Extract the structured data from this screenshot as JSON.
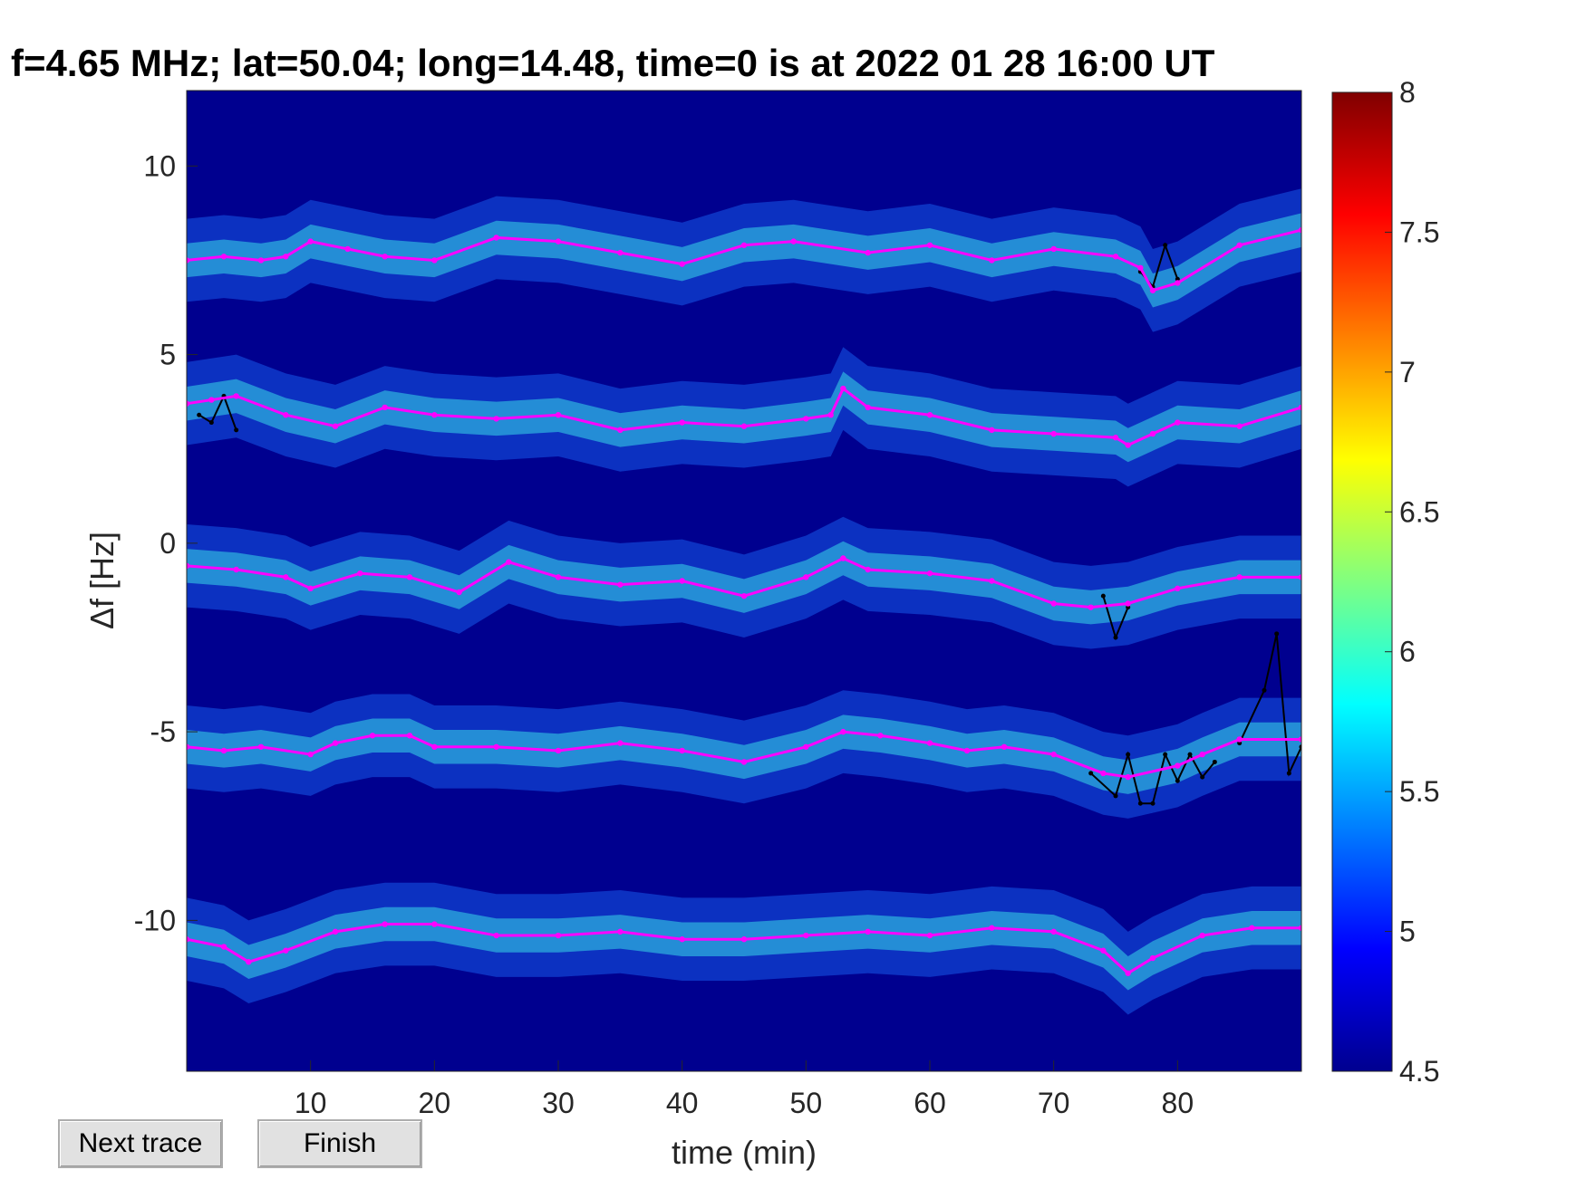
{
  "chart_data": {
    "type": "heatmap",
    "title": "f=4.65 MHz;  lat=50.04; long=14.48, time=0 is at 2022 01 28 16:00 UT",
    "xlabel": "time (min)",
    "ylabel": "Δf [Hz]",
    "xlim": [
      0,
      90
    ],
    "ylim": [
      -14,
      12
    ],
    "xticks": [
      "10",
      "20",
      "30",
      "40",
      "50",
      "60",
      "70",
      "80"
    ],
    "yticks": [
      "10",
      "5",
      "0",
      "-5",
      "-10"
    ],
    "colorbar": {
      "min": 4.5,
      "max": 8,
      "colormap": "jet",
      "ticks": [
        "8",
        "7.5",
        "7",
        "6.5",
        "6",
        "5.5",
        "5",
        "4.5"
      ]
    },
    "background_color": "#00008f",
    "trace_colors": {
      "tracked": "#ff00ff",
      "raw": "#000000"
    },
    "series": [
      {
        "x": [
          0,
          3,
          6,
          8,
          10,
          13,
          16,
          20,
          25,
          30,
          35,
          40,
          45,
          49,
          55,
          60,
          65,
          70,
          75,
          77,
          78,
          80,
          85,
          90
        ],
        "y": [
          7.5,
          7.6,
          7.5,
          7.6,
          8.0,
          7.8,
          7.6,
          7.5,
          8.1,
          8.0,
          7.7,
          7.4,
          7.9,
          8.0,
          7.7,
          7.9,
          7.5,
          7.8,
          7.6,
          7.3,
          6.7,
          6.9,
          7.9,
          8.3
        ]
      },
      {
        "x": [
          0,
          2,
          4,
          8,
          12,
          16,
          20,
          25,
          30,
          35,
          40,
          45,
          50,
          52,
          53,
          55,
          60,
          65,
          70,
          75,
          76,
          78,
          80,
          85,
          90
        ],
        "y": [
          3.7,
          3.8,
          3.9,
          3.4,
          3.1,
          3.6,
          3.4,
          3.3,
          3.4,
          3.0,
          3.2,
          3.1,
          3.3,
          3.4,
          4.1,
          3.6,
          3.4,
          3.0,
          2.9,
          2.8,
          2.6,
          2.9,
          3.2,
          3.1,
          3.6
        ]
      },
      {
        "x": [
          0,
          4,
          8,
          10,
          14,
          18,
          22,
          26,
          30,
          35,
          40,
          45,
          50,
          53,
          55,
          60,
          65,
          70,
          73,
          76,
          80,
          85,
          90
        ],
        "y": [
          -0.6,
          -0.7,
          -0.9,
          -1.2,
          -0.8,
          -0.9,
          -1.3,
          -0.5,
          -0.9,
          -1.1,
          -1.0,
          -1.4,
          -0.9,
          -0.4,
          -0.7,
          -0.8,
          -1.0,
          -1.6,
          -1.7,
          -1.6,
          -1.2,
          -0.9,
          -0.9
        ]
      },
      {
        "x": [
          0,
          3,
          6,
          10,
          12,
          15,
          18,
          20,
          25,
          30,
          35,
          40,
          45,
          50,
          53,
          56,
          60,
          63,
          66,
          70,
          74,
          76,
          80,
          82,
          85,
          90
        ],
        "y": [
          -5.4,
          -5.5,
          -5.4,
          -5.6,
          -5.3,
          -5.1,
          -5.1,
          -5.4,
          -5.4,
          -5.5,
          -5.3,
          -5.5,
          -5.8,
          -5.4,
          -5.0,
          -5.1,
          -5.3,
          -5.5,
          -5.4,
          -5.6,
          -6.1,
          -6.2,
          -5.9,
          -5.6,
          -5.2,
          -5.2
        ]
      },
      {
        "x": [
          0,
          3,
          5,
          8,
          12,
          16,
          20,
          25,
          30,
          35,
          40,
          45,
          50,
          55,
          60,
          65,
          70,
          74,
          76,
          78,
          82,
          86,
          90
        ],
        "y": [
          -10.5,
          -10.7,
          -11.1,
          -10.8,
          -10.3,
          -10.1,
          -10.1,
          -10.4,
          -10.4,
          -10.3,
          -10.5,
          -10.5,
          -10.4,
          -10.3,
          -10.4,
          -10.2,
          -10.3,
          -10.8,
          -11.4,
          -11.0,
          -10.4,
          -10.2,
          -10.2
        ]
      }
    ],
    "raw_spikes": [
      {
        "x": [
          77,
          78,
          79,
          80
        ],
        "y": [
          7.2,
          6.8,
          7.9,
          7.0
        ]
      },
      {
        "x": [
          1,
          2,
          3,
          4
        ],
        "y": [
          3.4,
          3.2,
          3.9,
          3.0
        ]
      },
      {
        "x": [
          74,
          75,
          76
        ],
        "y": [
          -1.4,
          -2.5,
          -1.7
        ]
      },
      {
        "x": [
          73,
          75,
          76,
          77,
          78,
          79,
          80,
          81,
          82,
          83
        ],
        "y": [
          -6.1,
          -6.7,
          -5.6,
          -6.9,
          -6.9,
          -5.6,
          -6.3,
          -5.6,
          -6.2,
          -5.8
        ]
      },
      {
        "x": [
          85,
          87,
          88,
          89,
          90
        ],
        "y": [
          -5.3,
          -3.9,
          -2.4,
          -6.1,
          -5.4
        ]
      }
    ]
  },
  "ui": {
    "next_trace_label": "Next trace",
    "finish_label": "Finish"
  }
}
